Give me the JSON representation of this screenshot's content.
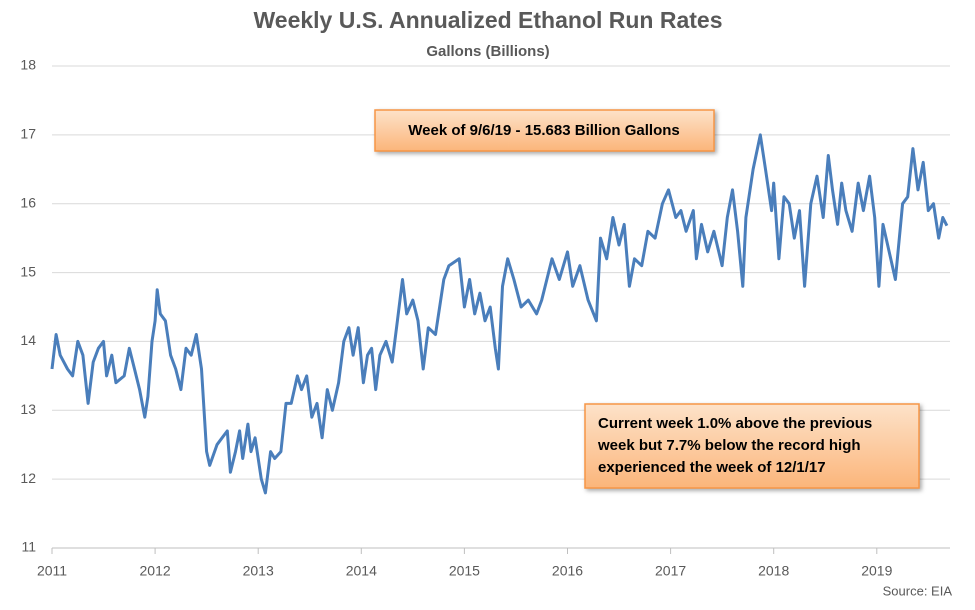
{
  "chart_data": {
    "type": "line",
    "title": "Weekly U.S. Annualized Ethanol Run Rates",
    "subtitle": "Gallons (Billions)",
    "source": "Source: EIA",
    "annotations": [
      {
        "lines": [
          "Week of 9/6/19 - 15.683 Billion Gallons"
        ]
      },
      {
        "lines": [
          "Current week 1.0% above the previous",
          "week but 7.7% below the record high",
          "experienced the week of 12/1/17"
        ]
      }
    ],
    "xlim": [
      2011,
      2019.71
    ],
    "xticks": [
      2011,
      2012,
      2013,
      2014,
      2015,
      2016,
      2017,
      2018,
      2019
    ],
    "ylim": [
      11,
      18
    ],
    "yticks": [
      11,
      12,
      13,
      14,
      15,
      16,
      17,
      18
    ],
    "grid": true,
    "series": [
      {
        "name": "Run Rate",
        "color": "#4a7ebb",
        "x": [
          2011.0,
          2011.04,
          2011.08,
          2011.15,
          2011.2,
          2011.25,
          2011.3,
          2011.35,
          2011.4,
          2011.45,
          2011.5,
          2011.53,
          2011.58,
          2011.62,
          2011.7,
          2011.75,
          2011.8,
          2011.85,
          2011.9,
          2011.93,
          2011.97,
          2012.0,
          2012.02,
          2012.05,
          2012.1,
          2012.15,
          2012.2,
          2012.25,
          2012.3,
          2012.35,
          2012.4,
          2012.45,
          2012.5,
          2012.53,
          2012.6,
          2012.65,
          2012.7,
          2012.73,
          2012.78,
          2012.82,
          2012.85,
          2012.9,
          2012.93,
          2012.97,
          2013.03,
          2013.07,
          2013.12,
          2013.16,
          2013.22,
          2013.27,
          2013.32,
          2013.38,
          2013.42,
          2013.47,
          2013.52,
          2013.57,
          2013.62,
          2013.67,
          2013.72,
          2013.78,
          2013.83,
          2013.88,
          2013.92,
          2013.97,
          2014.02,
          2014.06,
          2014.1,
          2014.14,
          2014.18,
          2014.24,
          2014.3,
          2014.35,
          2014.4,
          2014.44,
          2014.5,
          2014.55,
          2014.6,
          2014.65,
          2014.72,
          2014.8,
          2014.85,
          2014.95,
          2015.0,
          2015.05,
          2015.1,
          2015.15,
          2015.2,
          2015.25,
          2015.3,
          2015.33,
          2015.37,
          2015.42,
          2015.48,
          2015.55,
          2015.62,
          2015.7,
          2015.75,
          2015.85,
          2015.92,
          2016.0,
          2016.05,
          2016.12,
          2016.2,
          2016.28,
          2016.32,
          2016.38,
          2016.44,
          2016.5,
          2016.55,
          2016.6,
          2016.65,
          2016.72,
          2016.78,
          2016.85,
          2016.92,
          2016.98,
          2017.05,
          2017.1,
          2017.15,
          2017.22,
          2017.25,
          2017.3,
          2017.36,
          2017.42,
          2017.5,
          2017.55,
          2017.6,
          2017.65,
          2017.7,
          2017.73,
          2017.8,
          2017.87,
          2017.92,
          2017.98,
          2018.0,
          2018.05,
          2018.1,
          2018.15,
          2018.2,
          2018.25,
          2018.3,
          2018.36,
          2018.42,
          2018.48,
          2018.53,
          2018.57,
          2018.62,
          2018.66,
          2018.7,
          2018.76,
          2018.82,
          2018.87,
          2018.93,
          2018.98,
          2019.02,
          2019.06,
          2019.12,
          2019.18,
          2019.25,
          2019.3,
          2019.35,
          2019.4,
          2019.45,
          2019.5,
          2019.55,
          2019.6,
          2019.64,
          2019.68
        ],
        "values": [
          13.6,
          14.1,
          13.8,
          13.6,
          13.5,
          14.0,
          13.8,
          13.1,
          13.7,
          13.9,
          14.0,
          13.5,
          13.8,
          13.4,
          13.5,
          13.9,
          13.6,
          13.3,
          12.9,
          13.2,
          14.0,
          14.3,
          14.75,
          14.4,
          14.3,
          13.8,
          13.6,
          13.3,
          13.9,
          13.8,
          14.1,
          13.6,
          12.4,
          12.2,
          12.5,
          12.6,
          12.7,
          12.1,
          12.4,
          12.7,
          12.3,
          12.8,
          12.4,
          12.6,
          12.0,
          11.8,
          12.4,
          12.3,
          12.4,
          13.1,
          13.1,
          13.5,
          13.3,
          13.5,
          12.9,
          13.1,
          12.6,
          13.3,
          13.0,
          13.4,
          14.0,
          14.2,
          13.8,
          14.2,
          13.4,
          13.8,
          13.9,
          13.3,
          13.8,
          14.0,
          13.7,
          14.3,
          14.9,
          14.4,
          14.6,
          14.3,
          13.6,
          14.2,
          14.1,
          14.9,
          15.1,
          15.2,
          14.5,
          14.9,
          14.4,
          14.7,
          14.3,
          14.5,
          13.9,
          13.6,
          14.8,
          15.2,
          14.9,
          14.5,
          14.6,
          14.4,
          14.6,
          15.2,
          14.9,
          15.3,
          14.8,
          15.1,
          14.6,
          14.3,
          15.5,
          15.2,
          15.8,
          15.4,
          15.7,
          14.8,
          15.2,
          15.1,
          15.6,
          15.5,
          16.0,
          16.2,
          15.8,
          15.9,
          15.6,
          15.9,
          15.2,
          15.7,
          15.3,
          15.6,
          15.1,
          15.8,
          16.2,
          15.6,
          14.8,
          15.8,
          16.5,
          17.0,
          16.5,
          15.9,
          16.3,
          15.2,
          16.1,
          16.0,
          15.5,
          15.9,
          14.8,
          16.0,
          16.4,
          15.8,
          16.7,
          16.2,
          15.7,
          16.3,
          15.9,
          15.6,
          16.3,
          15.9,
          16.4,
          15.8,
          14.8,
          15.7,
          15.3,
          14.9,
          16.0,
          16.1,
          16.8,
          16.2,
          16.6,
          15.9,
          16.0,
          15.5,
          15.8,
          15.68
        ]
      }
    ]
  }
}
